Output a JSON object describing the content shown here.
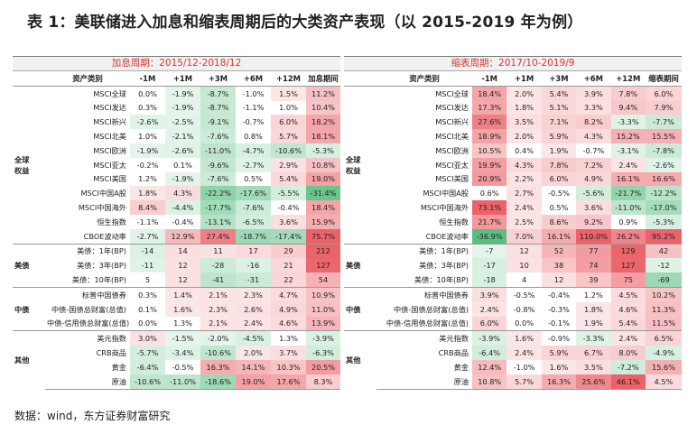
{
  "title": "表 1：美联储进入加息和缩表周期后的大类资产表现（以 2015-2019 年为例）",
  "footer": "数据：wind，东方证券财富研究",
  "panels": [
    {
      "period": "加息周期：2015/12-2018/12",
      "headers": [
        "资产类别",
        "-1M",
        "+1M",
        "+3M",
        "+6M",
        "+12M",
        "加息期间"
      ],
      "rows": [
        {
          "group": "",
          "asset": "MSCI全球",
          "values": [
            "0.0%",
            "-1.9%",
            "-8.7%",
            "-1.0%",
            "1.5%",
            "11.2%"
          ]
        },
        {
          "group": "",
          "asset": "MSCI发达",
          "values": [
            "0.3%",
            "-1.9%",
            "-8.7%",
            "-1.1%",
            "1.0%",
            "10.4%"
          ]
        },
        {
          "group": "",
          "asset": "MSCI新兴",
          "values": [
            "-2.6%",
            "-2.5%",
            "-9.1%",
            "-0.7%",
            "6.0%",
            "18.2%"
          ]
        },
        {
          "group": "",
          "asset": "MSCI北美",
          "values": [
            "1.0%",
            "-2.1%",
            "-7.6%",
            "0.8%",
            "5.7%",
            "18.1%"
          ]
        },
        {
          "group": "全球\n权益",
          "asset": "MSCI欧洲",
          "values": [
            "-1.9%",
            "-2.6%",
            "-11.0%",
            "-4.7%",
            "-10.6%",
            "-5.3%"
          ]
        },
        {
          "group": "",
          "asset": "MSCI亚太",
          "values": [
            "-0.2%",
            "0.1%",
            "-9.6%",
            "-2.7%",
            "2.9%",
            "10.8%"
          ]
        },
        {
          "group": "",
          "asset": "MSCI美国",
          "values": [
            "1.2%",
            "-1.9%",
            "-7.6%",
            "0.5%",
            "5.4%",
            "19.0%"
          ]
        },
        {
          "group": "",
          "asset": "MSCI中国A股",
          "values": [
            "1.8%",
            "4.3%",
            "-22.2%",
            "-17.6%",
            "-5.5%",
            "-31.4%"
          ]
        },
        {
          "group": "",
          "asset": "MSCI中国海外",
          "values": [
            "8.4%",
            "-4.4%",
            "-17.7%",
            "-7.6%",
            "-0.4%",
            "18.4%"
          ]
        },
        {
          "group": "",
          "asset": "恒生指数",
          "values": [
            "-1.1%",
            "-0.4%",
            "-13.1%",
            "-6.5%",
            "3.6%",
            "15.9%"
          ]
        },
        {
          "group": "",
          "asset": "CBOE波动率",
          "values": [
            "-2.7%",
            "12.9%",
            "27.4%",
            "-18.7%",
            "-17.4%",
            "75.7%"
          ]
        },
        {
          "group": "",
          "asset": "美债：1年(BP)",
          "values": [
            "-14",
            "14",
            "11",
            "17",
            "29",
            "212"
          ]
        },
        {
          "group": "美债",
          "asset": "美债：3年(BP)",
          "values": [
            "-11",
            "12",
            "-28",
            "-16",
            "21",
            "127"
          ]
        },
        {
          "group": "",
          "asset": "美债：10年(BP)",
          "values": [
            "5",
            "12",
            "-41",
            "-31",
            "22",
            "54"
          ]
        },
        {
          "group": "",
          "asset": "标普中国债券",
          "values": [
            "0.3%",
            "1.4%",
            "2.1%",
            "2.3%",
            "4.7%",
            "10.9%"
          ]
        },
        {
          "group": "中债",
          "asset": "中债-国债总财富(总值)",
          "values": [
            "0.1%",
            "1.6%",
            "2.3%",
            "2.6%",
            "4.9%",
            "11.0%"
          ]
        },
        {
          "group": "",
          "asset": "中债-信用债总财富(总值)",
          "values": [
            "0.0%",
            "1.3%",
            "2.1%",
            "2.4%",
            "4.6%",
            "13.9%"
          ]
        },
        {
          "group": "",
          "asset": "美元指数",
          "values": [
            "3.0%",
            "-1.5%",
            "-2.0%",
            "-4.5%",
            "1.3%",
            "-3.9%"
          ]
        },
        {
          "group": "其他",
          "asset": "CRB商品",
          "values": [
            "-5.7%",
            "-3.4%",
            "-10.6%",
            "2.0%",
            "3.7%",
            "-6.3%"
          ]
        },
        {
          "group": "",
          "asset": "黄金",
          "values": [
            "-6.4%",
            "-0.5%",
            "16.3%",
            "14.1%",
            "10.3%",
            "20.5%"
          ]
        },
        {
          "group": "",
          "asset": "原油",
          "values": [
            "-10.6%",
            "-11.0%",
            "-18.6%",
            "19.0%",
            "17.6%",
            "8.3%"
          ]
        }
      ]
    },
    {
      "period": "缩表周期：2017/10-2019/9",
      "headers": [
        "资产类别",
        "-1M",
        "+1M",
        "+3M",
        "+6M",
        "+12M",
        "缩表期间"
      ],
      "rows": [
        {
          "group": "",
          "asset": "MSCI全球",
          "values": [
            "18.4%",
            "2.0%",
            "5.4%",
            "3.9%",
            "7.8%",
            "6.0%"
          ]
        },
        {
          "group": "",
          "asset": "MSCI发达",
          "values": [
            "17.3%",
            "1.8%",
            "5.1%",
            "3.3%",
            "9.4%",
            "7.9%"
          ]
        },
        {
          "group": "",
          "asset": "MSCI新兴",
          "values": [
            "27.6%",
            "3.5%",
            "7.1%",
            "8.2%",
            "-3.3%",
            "-7.7%"
          ]
        },
        {
          "group": "",
          "asset": "MSCI北美",
          "values": [
            "18.9%",
            "2.0%",
            "5.9%",
            "4.3%",
            "15.2%",
            "15.5%"
          ]
        },
        {
          "group": "全球\n权益",
          "asset": "MSCI欧洲",
          "values": [
            "10.5%",
            "0.4%",
            "1.9%",
            "-0.7%",
            "-3.1%",
            "-7.8%"
          ]
        },
        {
          "group": "",
          "asset": "MSCI亚太",
          "values": [
            "19.9%",
            "4.3%",
            "7.8%",
            "7.2%",
            "2.4%",
            "-2.6%"
          ]
        },
        {
          "group": "",
          "asset": "MSCI美国",
          "values": [
            "20.9%",
            "2.2%",
            "6.0%",
            "4.9%",
            "16.1%",
            "16.6%"
          ]
        },
        {
          "group": "",
          "asset": "MSCI中国A股",
          "values": [
            "0.6%",
            "2.7%",
            "-0.5%",
            "-5.6%",
            "-21.7%",
            "-12.2%"
          ]
        },
        {
          "group": "",
          "asset": "MSCI中国海外",
          "values": [
            "73.1%",
            "2.4%",
            "0.5%",
            "3.6%",
            "-11.0%",
            "-17.0%"
          ]
        },
        {
          "group": "",
          "asset": "恒生指数",
          "values": [
            "21.7%",
            "2.5%",
            "8.6%",
            "9.2%",
            "0.9%",
            "-5.3%"
          ]
        },
        {
          "group": "",
          "asset": "CBOE波动率",
          "values": [
            "-36.9%",
            "7.0%",
            "16.1%",
            "110.0%",
            "26.2%",
            "95.2%"
          ]
        },
        {
          "group": "",
          "asset": "美债：1年(BP)",
          "values": [
            "-7",
            "12",
            "52",
            "77",
            "129",
            "42"
          ]
        },
        {
          "group": "美债",
          "asset": "美债：3年(BP)",
          "values": [
            "-17",
            "10",
            "38",
            "74",
            "127",
            "-12"
          ]
        },
        {
          "group": "",
          "asset": "美债：10年(BP)",
          "values": [
            "-18",
            "4",
            "12",
            "39",
            "75",
            "-69"
          ]
        },
        {
          "group": "",
          "asset": "标普中国债券",
          "values": [
            "3.9%",
            "-0.5%",
            "-0.4%",
            "1.2%",
            "4.5%",
            "10.2%"
          ]
        },
        {
          "group": "中债",
          "asset": "中债-国债总财富(总值)",
          "values": [
            "2.4%",
            "-0.8%",
            "-0.3%",
            "1.8%",
            "4.6%",
            "11.3%"
          ]
        },
        {
          "group": "",
          "asset": "中债-信用债总财富(总值)",
          "values": [
            "6.0%",
            "0.0%",
            "-0.1%",
            "1.9%",
            "5.4%",
            "11.5%"
          ]
        },
        {
          "group": "",
          "asset": "美元指数",
          "values": [
            "-3.9%",
            "1.6%",
            "-0.9%",
            "-3.3%",
            "2.4%",
            "6.5%"
          ]
        },
        {
          "group": "其他",
          "asset": "CRB商品",
          "values": [
            "-6.4%",
            "2.4%",
            "5.9%",
            "6.7%",
            "8.0%",
            "-4.9%"
          ]
        },
        {
          "group": "",
          "asset": "黄金",
          "values": [
            "12.4%",
            "-1.0%",
            "1.6%",
            "3.5%",
            "-7.2%",
            "15.6%"
          ]
        },
        {
          "group": "",
          "asset": "原油",
          "values": [
            "10.8%",
            "5.7%",
            "16.3%",
            "25.6%",
            "46.1%",
            "4.5%"
          ]
        }
      ]
    }
  ],
  "colors": {
    "positive": "#e8474f",
    "negative": "#3db36b",
    "neutral": "#ffffff"
  }
}
